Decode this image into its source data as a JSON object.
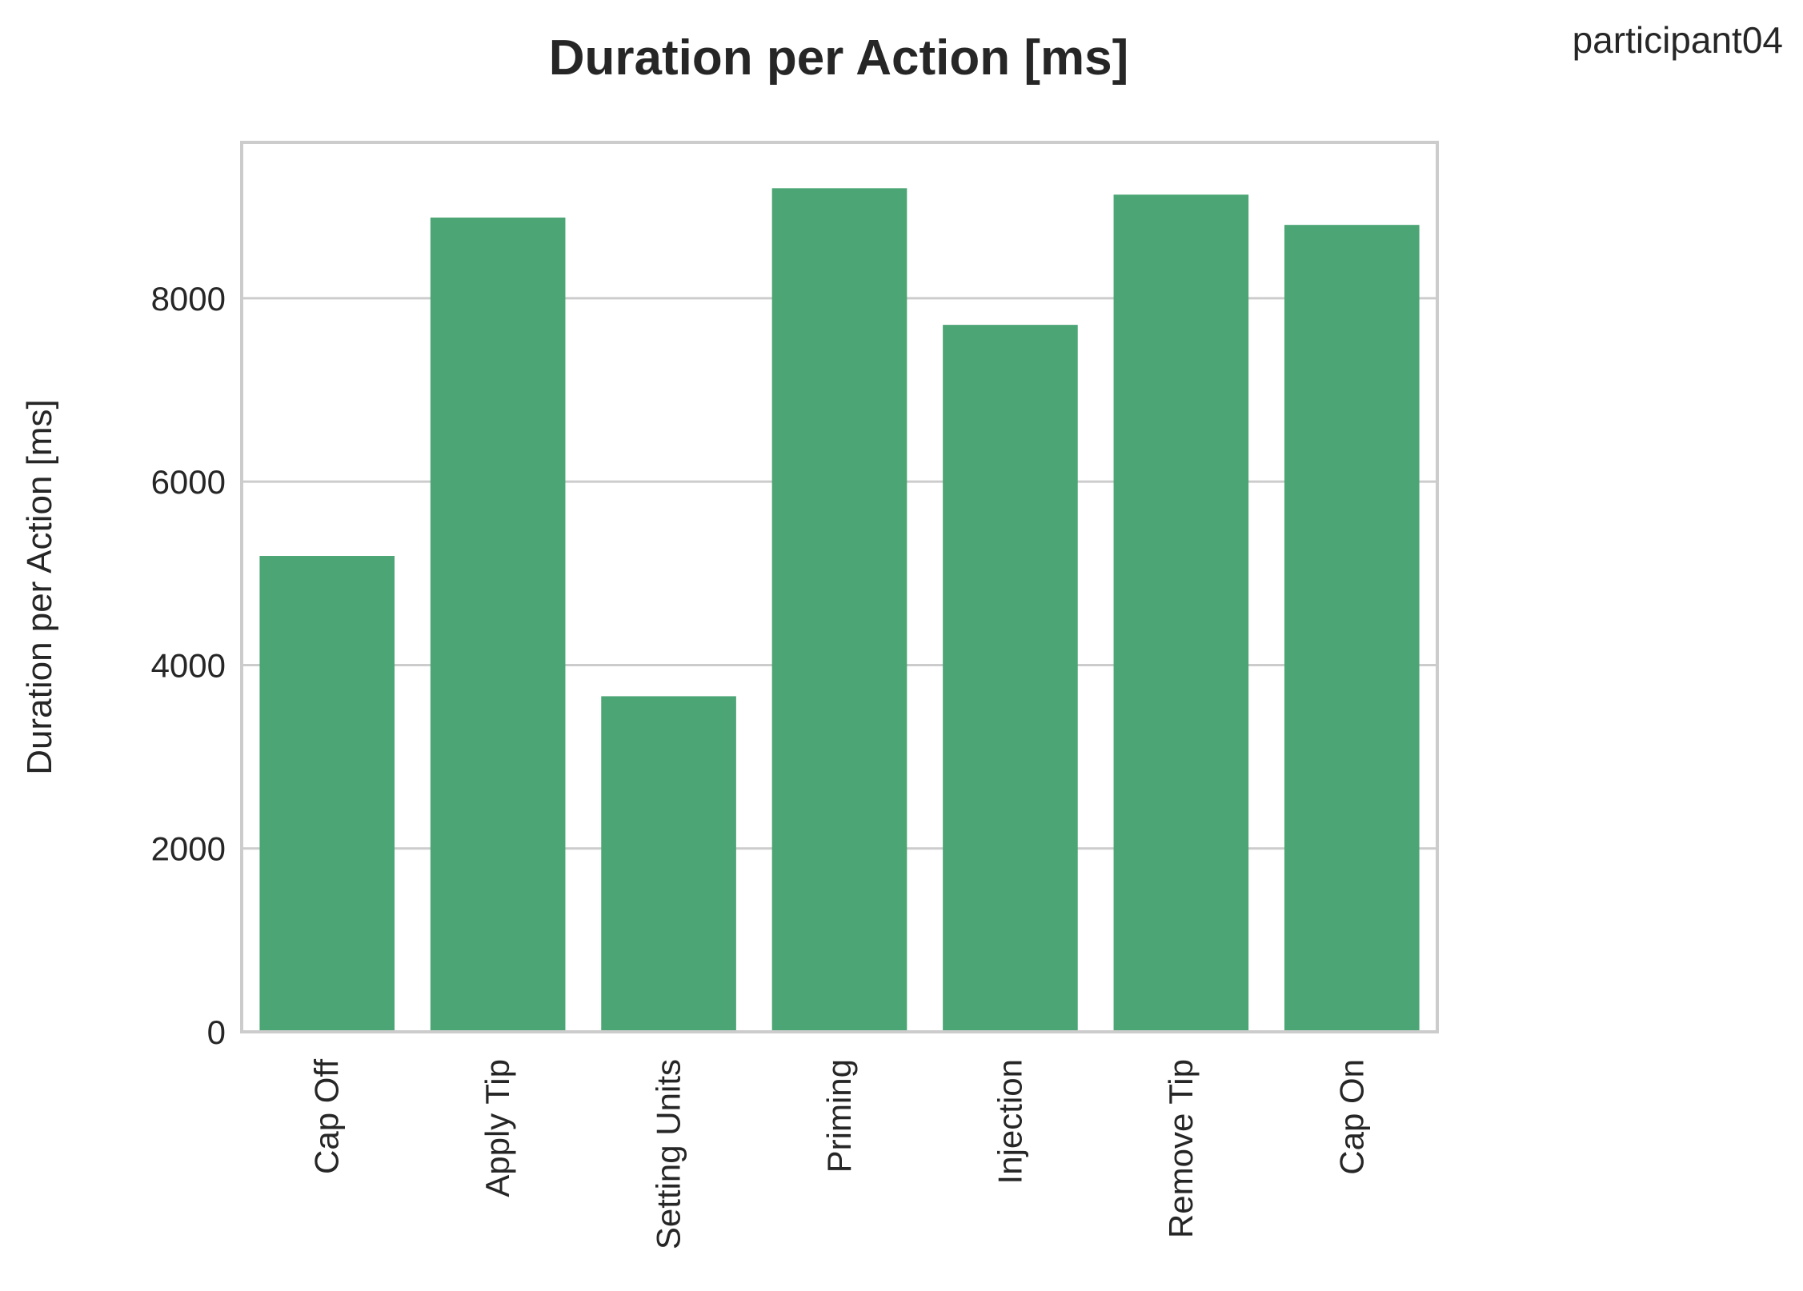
{
  "corner_label": "participant04",
  "chart_data": {
    "type": "bar",
    "title": "Duration per Action [ms]",
    "xlabel": "",
    "ylabel": "Duration per Action [ms]",
    "categories": [
      "Cap Off",
      "Apply Tip",
      "Setting Units",
      "Priming",
      "Injection",
      "Remove Tip",
      "Cap On"
    ],
    "values": [
      5190,
      8880,
      3660,
      9200,
      7710,
      9130,
      8800
    ],
    "ylim": [
      0,
      9700
    ],
    "yticks": [
      0,
      2000,
      4000,
      6000,
      8000
    ],
    "ytick_labels": [
      "0",
      "2000",
      "4000",
      "6000",
      "8000"
    ],
    "grid": true,
    "bar_color": "#4ca575",
    "grid_color": "#cccccc",
    "spine_color": "#cccccc"
  }
}
